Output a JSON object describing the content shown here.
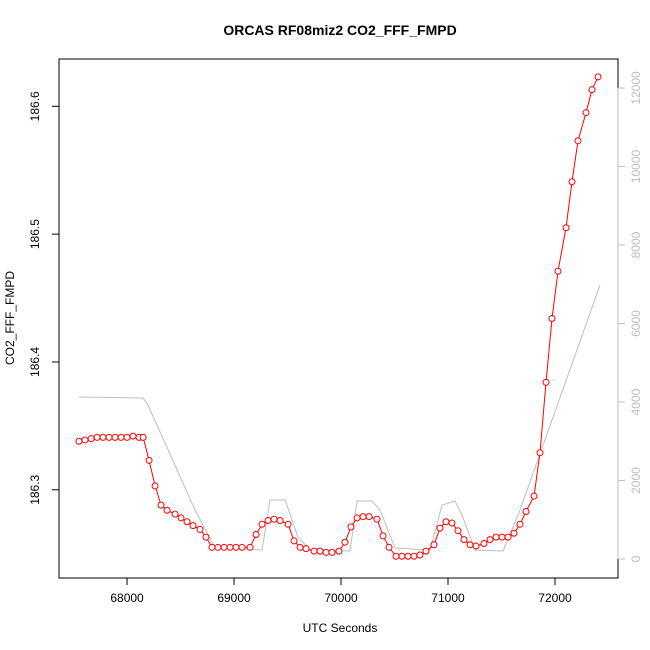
{
  "chart_data": {
    "type": "line",
    "title": "ORCAS RF08miz2 CO2_FFF_FMPD",
    "xlabel": "UTC Seconds",
    "ylabel": "CO2_FFF_FMPD",
    "xlim": [
      67364,
      72589
    ],
    "xticks": [
      68000,
      69000,
      70000,
      71000,
      72000
    ],
    "ylim": [
      186.231,
      186.637
    ],
    "yticks": [
      186.3,
      186.4,
      186.5,
      186.6
    ],
    "y2lim": [
      -484,
      12739
    ],
    "y2ticks": [
      0,
      2000,
      4000,
      6000,
      8000,
      10000,
      12000
    ],
    "y2color": "#bebebe",
    "series": [
      {
        "color": "#bebebe",
        "axis": "y2",
        "x": [
          67551,
          68150,
          68196,
          68636,
          68822,
          69262,
          69336,
          69477,
          69598,
          69710,
          70084,
          70150,
          70290,
          70364,
          70505,
          70832,
          70944,
          71065,
          71131,
          71252,
          71514,
          71673,
          72421
        ],
        "values": [
          4127,
          4102,
          3924,
          1248,
          280,
          229,
          1503,
          1503,
          561,
          229,
          204,
          1478,
          1478,
          1248,
          280,
          229,
          1376,
          1478,
          1121,
          229,
          204,
          1248,
          6979
        ]
      },
      {
        "color": "#ff0000",
        "markers": true,
        "x": [
          67551,
          67607,
          67664,
          67720,
          67776,
          67832,
          67888,
          67944,
          68000,
          68056,
          68112,
          68150,
          68206,
          68262,
          68318,
          68374,
          68449,
          68505,
          68561,
          68617,
          68682,
          68738,
          68794,
          68850,
          68907,
          68963,
          69019,
          69075,
          69150,
          69206,
          69262,
          69318,
          69374,
          69430,
          69505,
          69561,
          69617,
          69673,
          69748,
          69804,
          69860,
          69916,
          69981,
          70037,
          70093,
          70150,
          70206,
          70262,
          70336,
          70393,
          70449,
          70514,
          70570,
          70626,
          70682,
          70738,
          70794,
          70869,
          70925,
          70981,
          71037,
          71093,
          71150,
          71206,
          71262,
          71336,
          71393,
          71449,
          71505,
          71561,
          71617,
          71673,
          71729,
          71804,
          71860,
          71916,
          71972,
          72028,
          72103,
          72159,
          72215,
          72290,
          72346,
          72402
        ],
        "values": [
          186.338,
          186.339,
          186.34,
          186.341,
          186.341,
          186.341,
          186.341,
          186.341,
          186.341,
          186.342,
          186.341,
          186.341,
          186.323,
          186.303,
          186.288,
          186.284,
          186.281,
          186.278,
          186.275,
          186.272,
          186.269,
          186.263,
          186.255,
          186.255,
          186.255,
          186.255,
          186.255,
          186.255,
          186.255,
          186.265,
          186.273,
          186.276,
          186.277,
          186.276,
          186.273,
          186.26,
          186.255,
          186.254,
          186.252,
          186.252,
          186.251,
          186.251,
          186.252,
          186.259,
          186.271,
          186.278,
          186.279,
          186.279,
          186.277,
          186.264,
          186.255,
          186.248,
          186.248,
          186.248,
          186.248,
          186.249,
          186.252,
          186.257,
          186.27,
          186.275,
          186.274,
          186.268,
          186.261,
          186.257,
          186.256,
          186.258,
          186.261,
          186.263,
          186.263,
          186.263,
          186.266,
          186.273,
          186.283,
          186.295,
          186.329,
          186.384,
          186.434,
          186.471,
          186.505,
          186.541,
          186.573,
          186.595,
          186.613,
          186.623
        ]
      }
    ]
  }
}
